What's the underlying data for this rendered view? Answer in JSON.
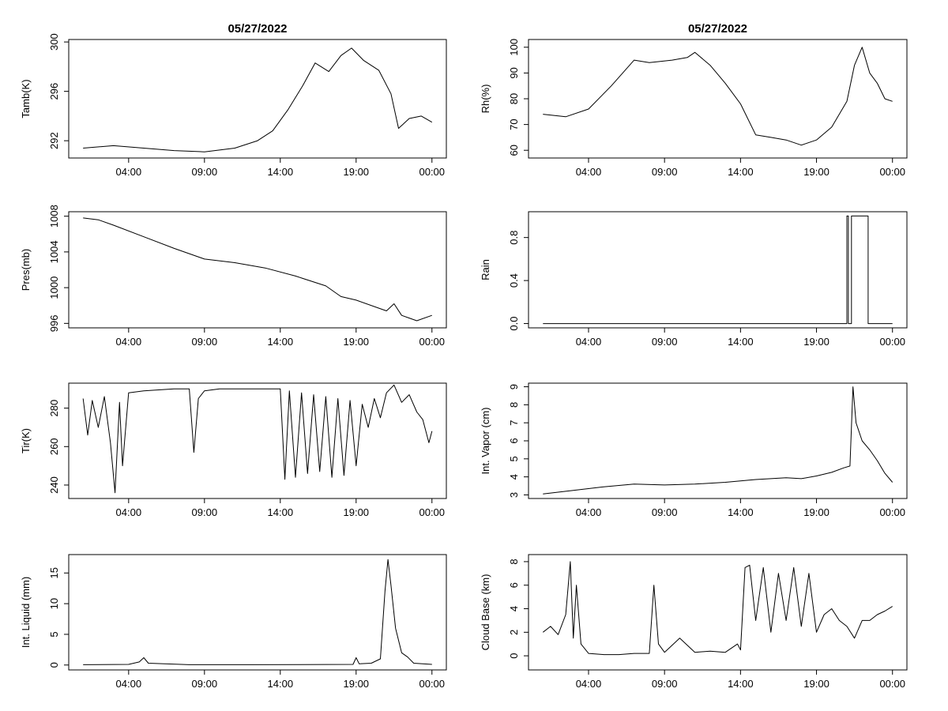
{
  "page": {
    "date_title": "05/27/2022"
  },
  "chart_data": [
    {
      "id": "tamb",
      "type": "line",
      "column": "left",
      "row": 0,
      "title": "05/27/2022",
      "ylabel": "Tamb(K)",
      "xlabel": "",
      "ylim": [
        290.6,
        300.2
      ],
      "yticks": [
        292,
        296,
        300
      ],
      "xticks": [
        "04:00",
        "09:00",
        "14:00",
        "19:00",
        "00:00"
      ],
      "xtick_hours": [
        4,
        9,
        14,
        19,
        24
      ],
      "x_hours": [
        1,
        3,
        5,
        7,
        9,
        11,
        12.5,
        13.5,
        14.5,
        15.5,
        16.3,
        17.2,
        18,
        18.7,
        19.5,
        20.5,
        21.3,
        21.8,
        22.5,
        23.3,
        24
      ],
      "y": [
        291.4,
        291.6,
        291.4,
        291.2,
        291.1,
        291.4,
        292.0,
        292.8,
        294.5,
        296.5,
        298.3,
        297.6,
        298.9,
        299.5,
        298.5,
        297.7,
        295.8,
        293.0,
        293.8,
        294.0,
        293.5
      ]
    },
    {
      "id": "rh",
      "type": "line",
      "column": "right",
      "row": 0,
      "title": "05/27/2022",
      "ylabel": "Rh(%)",
      "xlabel": "",
      "ylim": [
        57,
        103
      ],
      "yticks": [
        60,
        70,
        80,
        90,
        100
      ],
      "xticks": [
        "04:00",
        "09:00",
        "14:00",
        "19:00",
        "00:00"
      ],
      "xtick_hours": [
        4,
        9,
        14,
        19,
        24
      ],
      "x_hours": [
        1,
        2.5,
        4,
        5.5,
        7,
        8,
        9.5,
        10.5,
        11,
        12,
        13,
        14,
        15,
        16,
        17,
        18,
        19,
        20,
        21,
        21.5,
        22,
        22.5,
        23,
        23.5,
        24
      ],
      "y": [
        74,
        73,
        76,
        85,
        95,
        94,
        95,
        96,
        98,
        93,
        86,
        78,
        66,
        65,
        64,
        62,
        64,
        69,
        79,
        93,
        100,
        90,
        86,
        80,
        79
      ]
    },
    {
      "id": "pres",
      "type": "line",
      "column": "left",
      "row": 1,
      "title": "",
      "ylabel": "Pres(mb)",
      "xlabel": "",
      "ylim": [
        995.5,
        1008.5
      ],
      "yticks": [
        996,
        1000,
        1004,
        1008
      ],
      "xticks": [
        "04:00",
        "09:00",
        "14:00",
        "19:00",
        "00:00"
      ],
      "xtick_hours": [
        4,
        9,
        14,
        19,
        24
      ],
      "x_hours": [
        1,
        2,
        3,
        5,
        7,
        9,
        11,
        13,
        15,
        17,
        18,
        19,
        20.5,
        21,
        21.5,
        22,
        22.5,
        23,
        24
      ],
      "y": [
        1007.8,
        1007.6,
        1007.0,
        1005.7,
        1004.4,
        1003.2,
        1002.8,
        1002.2,
        1001.3,
        1000.2,
        999.0,
        998.6,
        997.7,
        997.4,
        998.2,
        996.9,
        996.6,
        996.3,
        996.9
      ]
    },
    {
      "id": "rain",
      "type": "line",
      "column": "right",
      "row": 1,
      "title": "",
      "ylabel": "Rain",
      "xlabel": "",
      "ylim": [
        -0.04,
        1.04
      ],
      "yticks": [
        0.0,
        0.4,
        0.8
      ],
      "ytick_labels": [
        "0.0",
        "0.4",
        "0.8"
      ],
      "xticks": [
        "04:00",
        "09:00",
        "14:00",
        "19:00",
        "00:00"
      ],
      "xtick_hours": [
        4,
        9,
        14,
        19,
        24
      ],
      "x_hours": [
        1,
        21,
        21,
        21.1,
        21.1,
        21.3,
        21.3,
        22.4,
        22.4,
        22.5,
        22.5,
        24
      ],
      "y": [
        0,
        0,
        1,
        1,
        0,
        0,
        1,
        1,
        0,
        0,
        0,
        0
      ]
    },
    {
      "id": "tir",
      "type": "line",
      "column": "left",
      "row": 2,
      "title": "",
      "ylabel": "Tir(K)",
      "xlabel": "",
      "ylim": [
        233,
        293
      ],
      "yticks": [
        240,
        260,
        280
      ],
      "xticks": [
        "04:00",
        "09:00",
        "14:00",
        "19:00",
        "00:00"
      ],
      "xtick_hours": [
        4,
        9,
        14,
        19,
        24
      ],
      "x_hours": [
        1,
        1.3,
        1.6,
        2,
        2.4,
        2.8,
        3.1,
        3.4,
        3.6,
        4,
        5,
        6,
        7,
        8,
        8.3,
        8.6,
        9,
        10,
        11,
        12,
        13,
        14,
        14.3,
        14.6,
        15,
        15.4,
        15.8,
        16.2,
        16.6,
        17,
        17.4,
        17.8,
        18.2,
        18.6,
        19,
        19.4,
        19.8,
        20.2,
        20.6,
        21,
        21.5,
        22,
        22.5,
        23,
        23.4,
        23.8,
        24
      ],
      "y": [
        285,
        266,
        284,
        270,
        286,
        262,
        236,
        283,
        250,
        288,
        289,
        289.5,
        290,
        290,
        257,
        285,
        289,
        290,
        290,
        290,
        290,
        290,
        243,
        289,
        244,
        288,
        246,
        287,
        247,
        286,
        244,
        285,
        245,
        284,
        250,
        282,
        270,
        285,
        275,
        288,
        292,
        283,
        287,
        278,
        274,
        262,
        268
      ]
    },
    {
      "id": "vapor",
      "type": "line",
      "column": "right",
      "row": 2,
      "title": "",
      "ylabel": "Int. Vapor (cm)",
      "xlabel": "",
      "ylim": [
        2.8,
        9.2
      ],
      "yticks": [
        3,
        4,
        5,
        6,
        7,
        8,
        9
      ],
      "xticks": [
        "04:00",
        "09:00",
        "14:00",
        "19:00",
        "00:00"
      ],
      "xtick_hours": [
        4,
        9,
        14,
        19,
        24
      ],
      "x_hours": [
        1,
        3,
        5,
        7,
        9,
        11,
        13,
        15,
        17,
        18,
        19,
        20,
        20.8,
        21.2,
        21.4,
        21.6,
        22,
        22.5,
        23,
        23.5,
        24
      ],
      "y": [
        3.05,
        3.25,
        3.45,
        3.6,
        3.55,
        3.6,
        3.7,
        3.85,
        3.95,
        3.9,
        4.05,
        4.25,
        4.5,
        4.6,
        9.0,
        7.0,
        6.0,
        5.5,
        4.9,
        4.2,
        3.7
      ]
    },
    {
      "id": "liquid",
      "type": "line",
      "column": "left",
      "row": 3,
      "title": "",
      "ylabel": "Int. Liquid (mm)",
      "xlabel": "",
      "ylim": [
        -0.8,
        18
      ],
      "yticks": [
        0,
        5,
        10,
        15
      ],
      "xticks": [
        "04:00",
        "09:00",
        "14:00",
        "19:00",
        "00:00"
      ],
      "xtick_hours": [
        4,
        9,
        14,
        19,
        24
      ],
      "x_hours": [
        1,
        4,
        4.7,
        5,
        5.3,
        8,
        12,
        18.8,
        19,
        19.2,
        20,
        20.6,
        20.9,
        21.1,
        21.3,
        21.6,
        22,
        22.4,
        22.8,
        24
      ],
      "y": [
        0.05,
        0.1,
        0.5,
        1.2,
        0.3,
        0.05,
        0.05,
        0.1,
        1.2,
        0.2,
        0.3,
        1.0,
        12.0,
        17.2,
        13.0,
        6.0,
        2.0,
        1.3,
        0.3,
        0.1
      ]
    },
    {
      "id": "cloud",
      "type": "line",
      "column": "right",
      "row": 3,
      "title": "",
      "ylabel": "Cloud Base (km)",
      "xlabel": "",
      "ylim": [
        -1.2,
        8.6
      ],
      "yticks": [
        0,
        2,
        4,
        6,
        8
      ],
      "xticks": [
        "04:00",
        "09:00",
        "14:00",
        "19:00",
        "00:00"
      ],
      "xtick_hours": [
        4,
        9,
        14,
        19,
        24
      ],
      "x_hours": [
        1,
        1.5,
        2,
        2.5,
        2.8,
        3,
        3.2,
        3.5,
        4,
        5,
        6,
        7,
        8,
        8.3,
        8.6,
        9,
        10,
        11,
        12,
        13,
        13.8,
        14,
        14.3,
        14.6,
        15,
        15.5,
        16,
        16.5,
        17,
        17.5,
        18,
        18.5,
        19,
        19.5,
        20,
        20.5,
        21,
        21.5,
        22,
        22.5,
        23,
        23.5,
        24
      ],
      "y": [
        2.0,
        2.5,
        1.8,
        3.5,
        8.0,
        1.5,
        6.0,
        1.0,
        0.2,
        0.1,
        0.1,
        0.2,
        0.2,
        6.0,
        1.0,
        0.3,
        1.5,
        0.3,
        0.4,
        0.3,
        1.0,
        0.5,
        7.5,
        7.7,
        3.0,
        7.5,
        2.0,
        7.0,
        3.0,
        7.5,
        2.5,
        7.0,
        2.0,
        3.5,
        4.0,
        3.0,
        2.5,
        1.5,
        3.0,
        3.0,
        3.5,
        3.8,
        4.2
      ]
    }
  ]
}
